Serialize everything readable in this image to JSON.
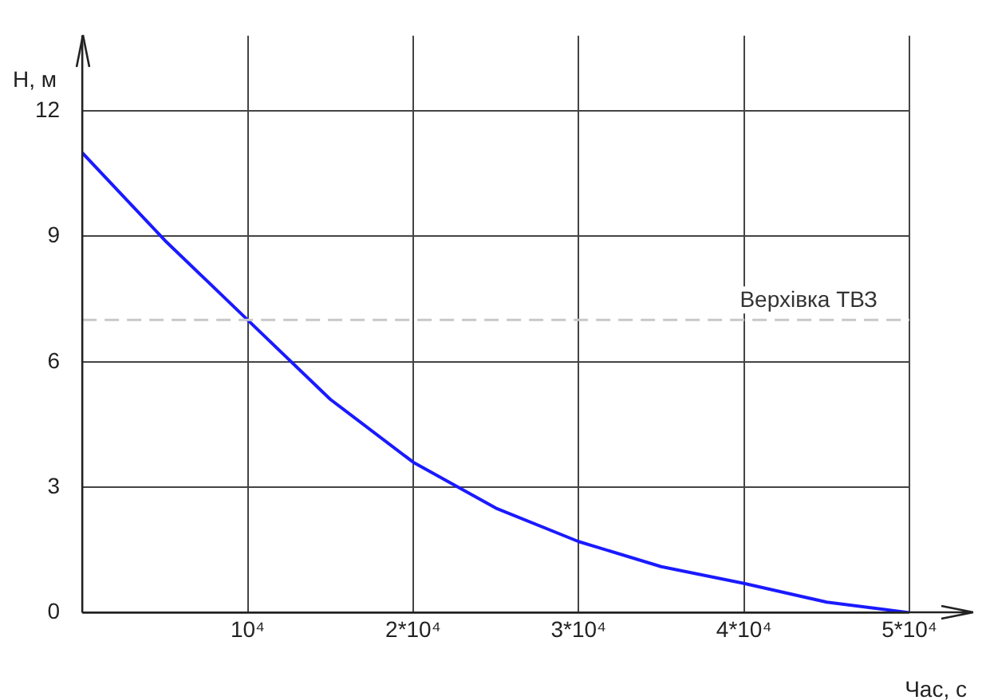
{
  "chart_data": {
    "type": "line",
    "xlabel": "Час, с",
    "ylabel": "Н, м",
    "x": [
      0,
      5000,
      10000,
      15000,
      20000,
      25000,
      30000,
      35000,
      40000,
      45000,
      50000
    ],
    "series": [
      {
        "color": "#1a1aff",
        "values": [
          11,
          8.9,
          7,
          5.1,
          3.6,
          2.5,
          1.7,
          1.1,
          0.7,
          0.25,
          0
        ]
      }
    ],
    "xlim": [
      0,
      50000
    ],
    "xticks": [
      {
        "value": 0,
        "label": null
      },
      {
        "value": 10000,
        "label": "10⁴"
      },
      {
        "value": 20000,
        "label": "2*10⁴"
      },
      {
        "value": 30000,
        "label": "3*10⁴"
      },
      {
        "value": 40000,
        "label": "4*10⁴"
      },
      {
        "value": 50000,
        "label": "5*10⁴"
      }
    ],
    "ylim": [
      0,
      13.8
    ],
    "yticks": [
      0,
      3,
      6,
      9,
      12
    ],
    "ref_lines": [
      {
        "axis": "y",
        "value": 7,
        "label": "Верхівка ТВЗ",
        "color": "#c8c8c8",
        "line_style": "dashed"
      }
    ],
    "grid": true,
    "legend": false,
    "marker": "none",
    "line_style": "solid"
  }
}
